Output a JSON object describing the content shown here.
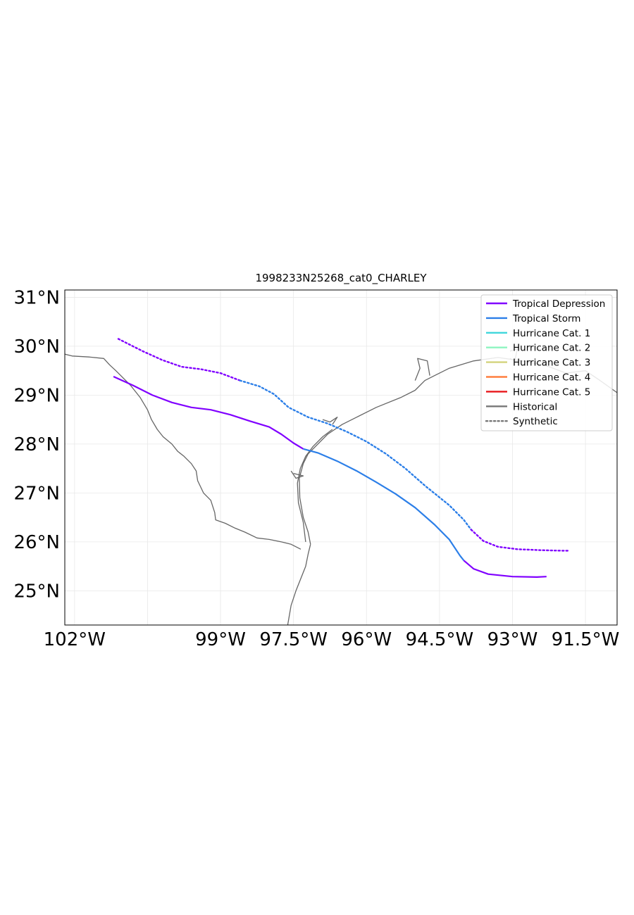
{
  "title": "1998233N25268_cat0_CHARLEY",
  "extent": {
    "lon_min": -102.2,
    "lon_max": -90.85,
    "lat_min": 24.3,
    "lat_max": 31.15
  },
  "x_ticks": [
    {
      "lon": -102.0,
      "label": "102°W"
    },
    {
      "lon": -99.0,
      "label": "99°W"
    },
    {
      "lon": -97.5,
      "label": "97.5°W"
    },
    {
      "lon": -96.0,
      "label": "96°W"
    },
    {
      "lon": -94.5,
      "label": "94.5°W"
    },
    {
      "lon": -93.0,
      "label": "93°W"
    },
    {
      "lon": -91.5,
      "label": "91.5°W"
    }
  ],
  "y_ticks": [
    {
      "lat": 31,
      "label": "31°N"
    },
    {
      "lat": 30,
      "label": "30°N"
    },
    {
      "lat": 29,
      "label": "29°N"
    },
    {
      "lat": 28,
      "label": "28°N"
    },
    {
      "lat": 27,
      "label": "27°N"
    },
    {
      "lat": 26,
      "label": "26°N"
    },
    {
      "lat": 25,
      "label": "25°N"
    }
  ],
  "grid_lons": [
    -102.0,
    -100.5,
    -99.0,
    -97.5,
    -96.0,
    -94.5,
    -93.0,
    -91.5
  ],
  "grid_lats": [
    25,
    26,
    27,
    28,
    29,
    30,
    31
  ],
  "colors": {
    "tropical_depression": "#8000ff",
    "tropical_storm": "#2c7fe8",
    "cat1": "#3fd6dc",
    "cat2": "#8ef5c0",
    "cat3": "#d4d47c",
    "cat4": "#ff7f3f",
    "cat5": "#e8161a",
    "historical": "#777777",
    "synthetic": "#777777",
    "coast": "#666666",
    "grid": "#e8e8e8"
  },
  "legend": {
    "placement": "top-right",
    "entries": [
      {
        "label": "Tropical Depression",
        "color": "#8000ff",
        "style": "solid"
      },
      {
        "label": "Tropical Storm",
        "color": "#2c7fe8",
        "style": "solid"
      },
      {
        "label": "Hurricane Cat. 1",
        "color": "#3fd6dc",
        "style": "solid"
      },
      {
        "label": "Hurricane Cat. 2",
        "color": "#8ef5c0",
        "style": "solid"
      },
      {
        "label": "Hurricane Cat. 3",
        "color": "#d4d47c",
        "style": "solid"
      },
      {
        "label": "Hurricane Cat. 4",
        "color": "#ff7f3f",
        "style": "solid"
      },
      {
        "label": "Hurricane Cat. 5",
        "color": "#e8161a",
        "style": "solid"
      },
      {
        "label": "Historical",
        "color": "#777777",
        "style": "solid"
      },
      {
        "label": "Synthetic",
        "color": "#777777",
        "style": "dotted"
      }
    ]
  },
  "tracks": [
    {
      "kind": "historical",
      "segments": [
        {
          "category": "tropical_depression",
          "points": [
            [
              -101.2,
              29.38
            ],
            [
              -100.8,
              29.2
            ],
            [
              -100.4,
              29.0
            ],
            [
              -100.0,
              28.85
            ],
            [
              -99.6,
              28.75
            ],
            [
              -99.2,
              28.7
            ],
            [
              -98.8,
              28.6
            ],
            [
              -98.4,
              28.47
            ],
            [
              -98.0,
              28.35
            ],
            [
              -97.75,
              28.2
            ],
            [
              -97.5,
              28.02
            ],
            [
              -97.3,
              27.9
            ]
          ]
        },
        {
          "category": "tropical_storm",
          "points": [
            [
              -97.3,
              27.9
            ],
            [
              -97.0,
              27.82
            ],
            [
              -96.6,
              27.65
            ],
            [
              -96.2,
              27.45
            ],
            [
              -95.8,
              27.22
            ],
            [
              -95.4,
              26.98
            ],
            [
              -95.0,
              26.7
            ],
            [
              -94.6,
              26.35
            ],
            [
              -94.3,
              26.05
            ],
            [
              -94.08,
              25.72
            ],
            [
              -94.0,
              25.62
            ]
          ]
        },
        {
          "category": "tropical_depression",
          "points": [
            [
              -94.0,
              25.62
            ],
            [
              -93.8,
              25.45
            ],
            [
              -93.5,
              25.34
            ],
            [
              -93.0,
              25.29
            ],
            [
              -92.5,
              25.28
            ],
            [
              -92.3,
              25.29
            ]
          ]
        }
      ]
    },
    {
      "kind": "synthetic",
      "segments": [
        {
          "category": "tropical_depression",
          "points": [
            [
              -101.1,
              30.15
            ],
            [
              -100.6,
              29.9
            ],
            [
              -100.2,
              29.72
            ],
            [
              -99.8,
              29.58
            ],
            [
              -99.4,
              29.53
            ],
            [
              -99.0,
              29.45
            ],
            [
              -98.6,
              29.3
            ]
          ]
        },
        {
          "category": "tropical_storm",
          "points": [
            [
              -98.6,
              29.3
            ],
            [
              -98.2,
              29.18
            ],
            [
              -97.9,
              29.02
            ],
            [
              -97.6,
              28.75
            ],
            [
              -97.2,
              28.55
            ],
            [
              -96.8,
              28.42
            ],
            [
              -96.4,
              28.25
            ],
            [
              -96.0,
              28.05
            ],
            [
              -95.6,
              27.8
            ],
            [
              -95.2,
              27.5
            ],
            [
              -94.8,
              27.15
            ],
            [
              -94.3,
              26.75
            ],
            [
              -94.0,
              26.45
            ],
            [
              -93.85,
              26.25
            ]
          ]
        },
        {
          "category": "tropical_depression",
          "points": [
            [
              -93.85,
              26.25
            ],
            [
              -93.6,
              26.02
            ],
            [
              -93.3,
              25.9
            ],
            [
              -92.9,
              25.85
            ],
            [
              -92.4,
              25.83
            ],
            [
              -92.0,
              25.82
            ],
            [
              -91.85,
              25.82
            ]
          ]
        }
      ]
    }
  ],
  "coastlines": [
    [
      [
        -102.25,
        29.85
      ],
      [
        -102.05,
        29.8
      ],
      [
        -101.7,
        29.78
      ],
      [
        -101.4,
        29.75
      ],
      [
        -101.28,
        29.62
      ],
      [
        -101.15,
        29.5
      ],
      [
        -101.05,
        29.4
      ],
      [
        -100.85,
        29.2
      ],
      [
        -100.65,
        28.95
      ],
      [
        -100.5,
        28.7
      ],
      [
        -100.42,
        28.5
      ],
      [
        -100.3,
        28.3
      ],
      [
        -100.18,
        28.15
      ],
      [
        -100.0,
        28.0
      ],
      [
        -99.88,
        27.85
      ],
      [
        -99.75,
        27.75
      ],
      [
        -99.6,
        27.6
      ],
      [
        -99.5,
        27.45
      ],
      [
        -99.47,
        27.25
      ],
      [
        -99.35,
        27.0
      ],
      [
        -99.2,
        26.85
      ],
      [
        -99.12,
        26.6
      ],
      [
        -99.1,
        26.45
      ],
      [
        -98.9,
        26.38
      ],
      [
        -98.7,
        26.28
      ],
      [
        -98.5,
        26.2
      ],
      [
        -98.25,
        26.08
      ],
      [
        -98.0,
        26.05
      ],
      [
        -97.75,
        26.0
      ],
      [
        -97.55,
        25.95
      ],
      [
        -97.35,
        25.85
      ]
    ],
    [
      [
        -97.15,
        25.95
      ],
      [
        -97.2,
        26.2
      ],
      [
        -97.3,
        26.5
      ],
      [
        -97.37,
        26.9
      ],
      [
        -97.38,
        27.3
      ],
      [
        -97.3,
        27.6
      ],
      [
        -97.2,
        27.8
      ],
      [
        -97.0,
        28.0
      ],
      [
        -96.8,
        28.2
      ],
      [
        -96.5,
        28.4
      ],
      [
        -96.2,
        28.55
      ],
      [
        -95.8,
        28.75
      ],
      [
        -95.3,
        28.95
      ],
      [
        -95.0,
        29.1
      ],
      [
        -94.8,
        29.3
      ],
      [
        -94.6,
        29.4
      ],
      [
        -94.3,
        29.55
      ],
      [
        -93.8,
        29.7
      ],
      [
        -93.3,
        29.77
      ],
      [
        -92.8,
        29.7
      ],
      [
        -92.3,
        29.6
      ],
      [
        -91.9,
        29.45
      ],
      [
        -91.5,
        29.5
      ],
      [
        -91.2,
        29.3
      ],
      [
        -90.85,
        29.05
      ]
    ],
    [
      [
        -97.15,
        25.95
      ],
      [
        -97.2,
        25.75
      ],
      [
        -97.25,
        25.5
      ],
      [
        -97.35,
        25.25
      ],
      [
        -97.45,
        25.0
      ],
      [
        -97.55,
        24.7
      ],
      [
        -97.62,
        24.3
      ]
    ],
    [
      [
        -97.25,
        26.0
      ],
      [
        -97.3,
        26.4
      ],
      [
        -97.4,
        26.8
      ],
      [
        -97.42,
        27.2
      ],
      [
        -97.36,
        27.5
      ],
      [
        -97.25,
        27.75
      ],
      [
        -97.1,
        27.95
      ],
      [
        -96.9,
        28.15
      ],
      [
        -96.7,
        28.3
      ]
    ],
    [
      [
        -97.55,
        27.45
      ],
      [
        -97.45,
        27.3
      ],
      [
        -97.3,
        27.35
      ],
      [
        -97.5,
        27.4
      ]
    ],
    [
      [
        -96.9,
        28.5
      ],
      [
        -96.75,
        28.45
      ],
      [
        -96.6,
        28.55
      ],
      [
        -96.7,
        28.4
      ]
    ],
    [
      [
        -95.0,
        29.3
      ],
      [
        -94.9,
        29.55
      ],
      [
        -94.95,
        29.75
      ],
      [
        -94.75,
        29.7
      ],
      [
        -94.7,
        29.4
      ]
    ],
    [
      [
        -93.05,
        29.9
      ],
      [
        -92.9,
        29.95
      ],
      [
        -92.95,
        29.7
      ],
      [
        -93.05,
        29.75
      ]
    ]
  ]
}
